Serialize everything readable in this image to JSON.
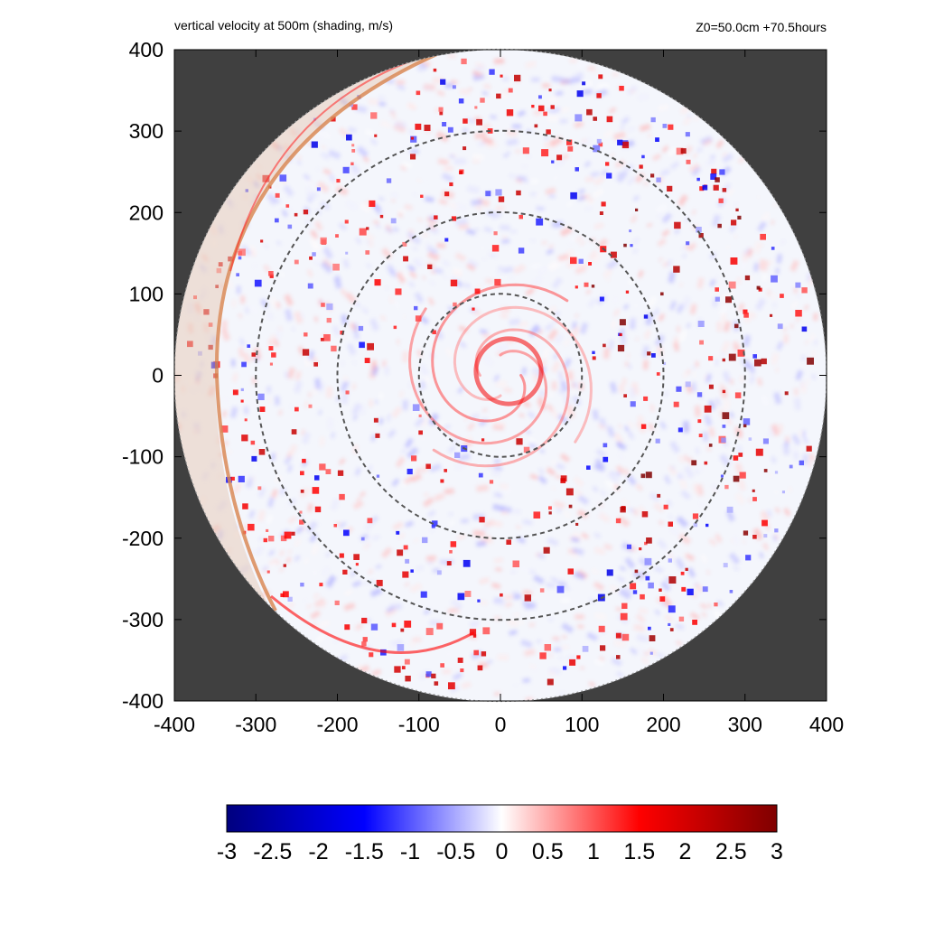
{
  "header": {
    "title": "vertical velocity at 500m (shading, m/s)",
    "info": "Z0=50.0cm  +70.5hours"
  },
  "chart_data": {
    "type": "heatmap",
    "title": "vertical velocity at 500m (shading, m/s)",
    "annotation": "Z0=50.0cm  +70.5hours",
    "xlabel": "",
    "ylabel": "",
    "xlim": [
      -400,
      400
    ],
    "ylim": [
      -400,
      400
    ],
    "x_ticks": [
      -400,
      -300,
      -200,
      -100,
      0,
      100,
      200,
      300,
      400
    ],
    "y_ticks": [
      -400,
      -300,
      -200,
      -100,
      0,
      100,
      200,
      300,
      400
    ],
    "domain_radius": 400,
    "reference_circles": [
      100,
      200,
      300
    ],
    "outside_domain_color": "#404040",
    "colorbar": {
      "min": -3,
      "max": 3,
      "ticks": [
        "-3",
        "-2.5",
        "-2",
        "-1.5",
        "-1",
        "-0.5",
        "0",
        "0.5",
        "1",
        "1.5",
        "2",
        "2.5",
        "3"
      ],
      "colors": [
        "#00007f",
        "#0000ff",
        "#ffffff",
        "#ff0000",
        "#7f0000"
      ]
    }
  }
}
